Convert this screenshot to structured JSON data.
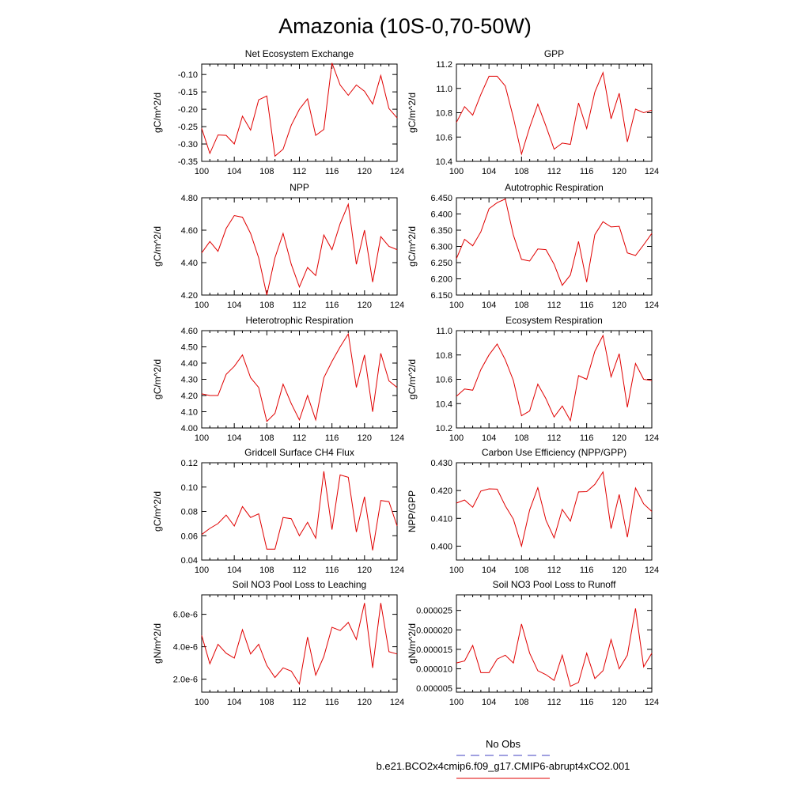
{
  "title": "Amazonia (10S-0,70-50W)",
  "legend": {
    "obs_label": "No Obs",
    "obs_color": "#4040c0",
    "model_label": "b.e21.BCO2x4cmip6.f09_g17.CMIP6-abrupt4xCO2.001",
    "model_color": "#e00000"
  },
  "chart_data": [
    {
      "type": "line",
      "title": "Net Ecosystem Exchange",
      "ylabel": "gC/m^2/d",
      "xlabel": "",
      "xlim": [
        100,
        124
      ],
      "ylim": [
        -0.35,
        -0.07
      ],
      "x_ticks": [
        "100",
        "104",
        "108",
        "112",
        "116",
        "120",
        "124"
      ],
      "y_ticks": [
        -0.35,
        -0.3,
        -0.25,
        -0.2,
        -0.15,
        -0.1
      ],
      "y_tick_labels": [
        "-0.35",
        "-0.30",
        "-0.25",
        "-0.20",
        "-0.15",
        "-0.10"
      ],
      "x": [
        100,
        101,
        102,
        103,
        104,
        105,
        106,
        107,
        108,
        109,
        110,
        111,
        112,
        113,
        114,
        115,
        116,
        117,
        118,
        119,
        120,
        121,
        122,
        123,
        124
      ],
      "series": [
        {
          "name": "b.e21.BCO2x4cmip6.f09_g17.CMIP6-abrupt4xCO2.001",
          "color": "#e00000",
          "values": [
            -0.255,
            -0.327,
            -0.274,
            -0.275,
            -0.3,
            -0.22,
            -0.26,
            -0.173,
            -0.162,
            -0.335,
            -0.315,
            -0.246,
            -0.2,
            -0.17,
            -0.275,
            -0.258,
            -0.067,
            -0.13,
            -0.16,
            -0.13,
            -0.148,
            -0.185,
            -0.103,
            -0.198,
            -0.225
          ]
        }
      ]
    },
    {
      "type": "line",
      "title": "GPP",
      "ylabel": "gC/m^2/d",
      "xlabel": "",
      "xlim": [
        100,
        124
      ],
      "ylim": [
        10.4,
        11.2
      ],
      "x_ticks": [
        "100",
        "104",
        "108",
        "112",
        "116",
        "120",
        "124"
      ],
      "y_ticks": [
        10.4,
        10.6,
        10.8,
        11.0,
        11.2
      ],
      "y_tick_labels": [
        "10.4",
        "10.6",
        "10.8",
        "11.0",
        "11.2"
      ],
      "x": [
        100,
        101,
        102,
        103,
        104,
        105,
        106,
        107,
        108,
        109,
        110,
        111,
        112,
        113,
        114,
        115,
        116,
        117,
        118,
        119,
        120,
        121,
        122,
        123,
        124
      ],
      "series": [
        {
          "name": "b.e21.BCO2x4cmip6.f09_g17.CMIP6-abrupt4xCO2.001",
          "color": "#e00000",
          "values": [
            10.72,
            10.85,
            10.78,
            10.95,
            11.1,
            11.1,
            11.02,
            10.76,
            10.46,
            10.68,
            10.87,
            10.69,
            10.5,
            10.55,
            10.54,
            10.88,
            10.67,
            10.97,
            11.13,
            10.75,
            10.96,
            10.56,
            10.83,
            10.8,
            10.82
          ]
        }
      ]
    },
    {
      "type": "line",
      "title": "NPP",
      "ylabel": "gC/m^2/d",
      "xlabel": "",
      "xlim": [
        100,
        124
      ],
      "ylim": [
        4.2,
        4.8
      ],
      "x_ticks": [
        "100",
        "104",
        "108",
        "112",
        "116",
        "120",
        "124"
      ],
      "y_ticks": [
        4.2,
        4.4,
        4.6,
        4.8
      ],
      "y_tick_labels": [
        "4.20",
        "4.40",
        "4.60",
        "4.80"
      ],
      "x": [
        100,
        101,
        102,
        103,
        104,
        105,
        106,
        107,
        108,
        109,
        110,
        111,
        112,
        113,
        114,
        115,
        116,
        117,
        118,
        119,
        120,
        121,
        122,
        123,
        124
      ],
      "series": [
        {
          "name": "b.e21.BCO2x4cmip6.f09_g17.CMIP6-abrupt4xCO2.001",
          "color": "#e00000",
          "values": [
            4.46,
            4.53,
            4.47,
            4.61,
            4.69,
            4.68,
            4.58,
            4.43,
            4.2,
            4.43,
            4.58,
            4.39,
            4.25,
            4.37,
            4.32,
            4.57,
            4.48,
            4.64,
            4.76,
            4.39,
            4.6,
            4.28,
            4.56,
            4.5,
            4.48
          ]
        }
      ]
    },
    {
      "type": "line",
      "title": "Autotrophic Respiration",
      "ylabel": "gC/m^2/d",
      "xlabel": "",
      "xlim": [
        100,
        124
      ],
      "ylim": [
        6.15,
        6.45
      ],
      "x_ticks": [
        "100",
        "104",
        "108",
        "112",
        "116",
        "120",
        "124"
      ],
      "y_ticks": [
        6.15,
        6.2,
        6.25,
        6.3,
        6.35,
        6.4,
        6.45
      ],
      "y_tick_labels": [
        "6.150",
        "6.200",
        "6.250",
        "6.300",
        "6.350",
        "6.400",
        "6.450"
      ],
      "x": [
        100,
        101,
        102,
        103,
        104,
        105,
        106,
        107,
        108,
        109,
        110,
        111,
        112,
        113,
        114,
        115,
        116,
        117,
        118,
        119,
        120,
        121,
        122,
        123,
        124
      ],
      "series": [
        {
          "name": "b.e21.BCO2x4cmip6.f09_g17.CMIP6-abrupt4xCO2.001",
          "color": "#e00000",
          "values": [
            6.262,
            6.322,
            6.302,
            6.345,
            6.416,
            6.435,
            6.446,
            6.335,
            6.26,
            6.255,
            6.292,
            6.29,
            6.245,
            6.18,
            6.212,
            6.315,
            6.19,
            6.336,
            6.376,
            6.36,
            6.362,
            6.28,
            6.272,
            6.305,
            6.34
          ]
        }
      ]
    },
    {
      "type": "line",
      "title": "Heterotrophic Respiration",
      "ylabel": "gC/m^2/d",
      "xlabel": "",
      "xlim": [
        100,
        124
      ],
      "ylim": [
        4.0,
        4.6
      ],
      "x_ticks": [
        "100",
        "104",
        "108",
        "112",
        "116",
        "120",
        "124"
      ],
      "y_ticks": [
        4.0,
        4.1,
        4.2,
        4.3,
        4.4,
        4.5,
        4.6
      ],
      "y_tick_labels": [
        "4.00",
        "4.10",
        "4.20",
        "4.30",
        "4.40",
        "4.50",
        "4.60"
      ],
      "x": [
        100,
        101,
        102,
        103,
        104,
        105,
        106,
        107,
        108,
        109,
        110,
        111,
        112,
        113,
        114,
        115,
        116,
        117,
        118,
        119,
        120,
        121,
        122,
        123,
        124
      ],
      "series": [
        {
          "name": "b.e21.BCO2x4cmip6.f09_g17.CMIP6-abrupt4xCO2.001",
          "color": "#e00000",
          "values": [
            4.21,
            4.2,
            4.2,
            4.33,
            4.38,
            4.45,
            4.31,
            4.25,
            4.04,
            4.09,
            4.27,
            4.15,
            4.05,
            4.2,
            4.05,
            4.31,
            4.41,
            4.5,
            4.58,
            4.25,
            4.45,
            4.1,
            4.46,
            4.29,
            4.25
          ]
        }
      ]
    },
    {
      "type": "line",
      "title": "Ecosystem Respiration",
      "ylabel": "gC/m^2/d",
      "xlabel": "",
      "xlim": [
        100,
        124
      ],
      "ylim": [
        10.2,
        11.0
      ],
      "x_ticks": [
        "100",
        "104",
        "108",
        "112",
        "116",
        "120",
        "124"
      ],
      "y_ticks": [
        10.2,
        10.4,
        10.6,
        10.8,
        11.0
      ],
      "y_tick_labels": [
        "10.2",
        "10.4",
        "10.6",
        "10.8",
        "11.0"
      ],
      "x": [
        100,
        101,
        102,
        103,
        104,
        105,
        106,
        107,
        108,
        109,
        110,
        111,
        112,
        113,
        114,
        115,
        116,
        117,
        118,
        119,
        120,
        121,
        122,
        123,
        124
      ],
      "series": [
        {
          "name": "b.e21.BCO2x4cmip6.f09_g17.CMIP6-abrupt4xCO2.001",
          "color": "#e00000",
          "values": [
            10.46,
            10.52,
            10.51,
            10.68,
            10.8,
            10.89,
            10.76,
            10.59,
            10.3,
            10.34,
            10.56,
            10.44,
            10.29,
            10.38,
            10.26,
            10.63,
            10.6,
            10.83,
            10.96,
            10.62,
            10.81,
            10.37,
            10.73,
            10.6,
            10.59
          ]
        }
      ]
    },
    {
      "type": "line",
      "title": "Gridcell Surface CH4 Flux",
      "ylabel": "gC/m^2/d",
      "xlabel": "",
      "xlim": [
        100,
        124
      ],
      "ylim": [
        0.04,
        0.12
      ],
      "x_ticks": [
        "100",
        "104",
        "108",
        "112",
        "116",
        "120",
        "124"
      ],
      "y_ticks": [
        0.04,
        0.06,
        0.08,
        0.1,
        0.12
      ],
      "y_tick_labels": [
        "0.04",
        "0.06",
        "0.08",
        "0.10",
        "0.12"
      ],
      "x": [
        100,
        101,
        102,
        103,
        104,
        105,
        106,
        107,
        108,
        109,
        110,
        111,
        112,
        113,
        114,
        115,
        116,
        117,
        118,
        119,
        120,
        121,
        122,
        123,
        124
      ],
      "series": [
        {
          "name": "b.e21.BCO2x4cmip6.f09_g17.CMIP6-abrupt4xCO2.001",
          "color": "#e00000",
          "values": [
            0.061,
            0.066,
            0.07,
            0.077,
            0.068,
            0.084,
            0.075,
            0.078,
            0.049,
            0.049,
            0.075,
            0.074,
            0.06,
            0.071,
            0.058,
            0.113,
            0.065,
            0.11,
            0.108,
            0.063,
            0.092,
            0.048,
            0.089,
            0.088,
            0.068
          ]
        }
      ]
    },
    {
      "type": "line",
      "title": "Carbon Use Efficiency (NPP/GPP)",
      "ylabel": "NPP/GPP",
      "xlabel": "",
      "xlim": [
        100,
        124
      ],
      "ylim": [
        0.395,
        0.43
      ],
      "x_ticks": [
        "100",
        "104",
        "108",
        "112",
        "116",
        "120",
        "124"
      ],
      "y_ticks": [
        0.4,
        0.41,
        0.42,
        0.43
      ],
      "y_tick_labels": [
        "0.400",
        "0.410",
        "0.420",
        "0.430"
      ],
      "x": [
        100,
        101,
        102,
        103,
        104,
        105,
        106,
        107,
        108,
        109,
        110,
        111,
        112,
        113,
        114,
        115,
        116,
        117,
        118,
        119,
        120,
        121,
        122,
        123,
        124
      ],
      "series": [
        {
          "name": "b.e21.BCO2x4cmip6.f09_g17.CMIP6-abrupt4xCO2.001",
          "color": "#e00000",
          "values": [
            0.4155,
            0.4166,
            0.414,
            0.4198,
            0.4206,
            0.4205,
            0.4145,
            0.4097,
            0.4,
            0.413,
            0.421,
            0.4093,
            0.403,
            0.4132,
            0.409,
            0.4195,
            0.4196,
            0.4222,
            0.4267,
            0.4063,
            0.4186,
            0.4032,
            0.4209,
            0.4152,
            0.4125
          ]
        }
      ]
    },
    {
      "type": "line",
      "title": "Soil NO3 Pool Loss to Leaching",
      "ylabel": "gN/m^2/d",
      "xlabel": "",
      "xlim": [
        100,
        124
      ],
      "ylim": [
        1.2e-06,
        7.2e-06
      ],
      "x_ticks": [
        "100",
        "104",
        "108",
        "112",
        "116",
        "120",
        "124"
      ],
      "y_ticks": [
        2e-06,
        4e-06,
        6e-06
      ],
      "y_tick_labels": [
        "2.0e-6",
        "4.0e-6",
        "6.0e-6"
      ],
      "x": [
        100,
        101,
        102,
        103,
        104,
        105,
        106,
        107,
        108,
        109,
        110,
        111,
        112,
        113,
        114,
        115,
        116,
        117,
        118,
        119,
        120,
        121,
        122,
        123,
        124
      ],
      "series": [
        {
          "name": "b.e21.BCO2x4cmip6.f09_g17.CMIP6-abrupt4xCO2.001",
          "color": "#e00000",
          "values": [
            4.7e-06,
            2.95e-06,
            4.15e-06,
            3.6e-06,
            3.3e-06,
            5.05e-06,
            3.55e-06,
            4.15e-06,
            2.85e-06,
            2.1e-06,
            2.7e-06,
            2.5e-06,
            1.7e-06,
            4.6e-06,
            2.25e-06,
            3.4e-06,
            5.2e-06,
            5e-06,
            5.5e-06,
            4.45e-06,
            6.7e-06,
            2.7e-06,
            6.7e-06,
            3.7e-06,
            3.55e-06
          ]
        }
      ]
    },
    {
      "type": "line",
      "title": "Soil NO3 Pool Loss to Runoff",
      "ylabel": "gN/m^2/d",
      "xlabel": "",
      "xlim": [
        100,
        124
      ],
      "ylim": [
        4e-06,
        2.9e-05
      ],
      "x_ticks": [
        "100",
        "104",
        "108",
        "112",
        "116",
        "120",
        "124"
      ],
      "y_ticks": [
        5e-06,
        1e-05,
        1.5e-05,
        2e-05,
        2.5e-05
      ],
      "y_tick_labels": [
        "0.000005",
        "0.000010",
        "0.000015",
        "0.000020",
        "0.000025"
      ],
      "x": [
        100,
        101,
        102,
        103,
        104,
        105,
        106,
        107,
        108,
        109,
        110,
        111,
        112,
        113,
        114,
        115,
        116,
        117,
        118,
        119,
        120,
        121,
        122,
        123,
        124
      ],
      "series": [
        {
          "name": "b.e21.BCO2x4cmip6.f09_g17.CMIP6-abrupt4xCO2.001",
          "color": "#e00000",
          "values": [
            1.15e-05,
            1.2e-05,
            1.6e-05,
            9e-06,
            9e-06,
            1.25e-05,
            1.35e-05,
            1.15e-05,
            2.15e-05,
            1.4e-05,
            9.5e-06,
            8.5e-06,
            7e-06,
            1.35e-05,
            5.5e-06,
            6.5e-06,
            1.4e-05,
            7.5e-06,
            9.5e-06,
            1.75e-05,
            1e-05,
            1.35e-05,
            2.55e-05,
            1.05e-05,
            1.4e-05
          ]
        }
      ]
    }
  ]
}
